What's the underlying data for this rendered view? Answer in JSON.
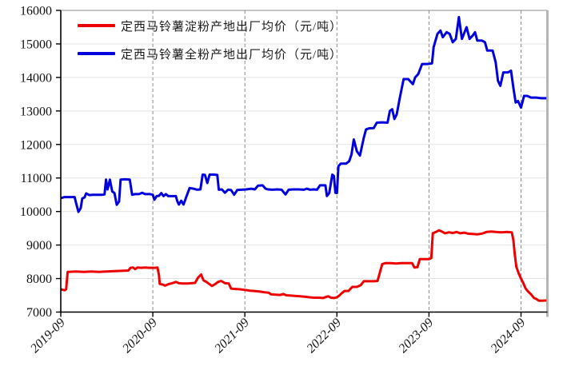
{
  "chart_data": {
    "type": "line",
    "title": "",
    "xlabel": "",
    "ylabel": "",
    "unit": "元/吨",
    "x_axis": {
      "tick_labels": [
        "2019-09",
        "2020-09",
        "2021-09",
        "2022-09",
        "2023-09",
        "2024-09"
      ],
      "tick_month_offsets": [
        0,
        12,
        24,
        36,
        48,
        60
      ],
      "months_span": 63.3,
      "label_style": "italic, rotated -45deg"
    },
    "y_axis": {
      "min": 7000,
      "max": 16000,
      "step": 1000,
      "tick_labels": [
        "7000",
        "8000",
        "9000",
        "10000",
        "11000",
        "12000",
        "13000",
        "14000",
        "15000",
        "16000"
      ]
    },
    "grid": {
      "horizontal": true,
      "vertical_dashed_at_year_ticks": true
    },
    "legend_position": "top-left",
    "colors": {
      "starch": "#ee0000",
      "whole_powder": "#0000dd",
      "grid": "#e3e3e3",
      "dashed_grid": "#8a8a8a",
      "axis": "#000000",
      "frame": "#b4b4b4"
    },
    "series": [
      {
        "name": "定西马铃薯淀粉产地出厂均价（元/吨）",
        "color": "#ee0000",
        "key": "starch",
        "points": [
          [
            0,
            7680
          ],
          [
            0.5,
            7650
          ],
          [
            0.7,
            7680
          ],
          [
            0.9,
            8200
          ],
          [
            2,
            8210
          ],
          [
            3,
            8200
          ],
          [
            4,
            8210
          ],
          [
            5,
            8200
          ],
          [
            6,
            8210
          ],
          [
            7,
            8220
          ],
          [
            8,
            8230
          ],
          [
            8.8,
            8240
          ],
          [
            9.1,
            8320
          ],
          [
            9.4,
            8330
          ],
          [
            9.7,
            8280
          ],
          [
            10,
            8330
          ],
          [
            10.5,
            8320
          ],
          [
            11,
            8330
          ],
          [
            11.5,
            8320
          ],
          [
            12.3,
            8320
          ],
          [
            12.6,
            8330
          ],
          [
            12.8,
            8100
          ],
          [
            12.9,
            7840
          ],
          [
            13.3,
            7820
          ],
          [
            13.6,
            7790
          ],
          [
            14,
            7830
          ],
          [
            14.5,
            7860
          ],
          [
            15,
            7900
          ],
          [
            15.4,
            7860
          ],
          [
            15.9,
            7850
          ],
          [
            16.5,
            7850
          ],
          [
            17,
            7860
          ],
          [
            17.5,
            7870
          ],
          [
            17.9,
            8030
          ],
          [
            18.3,
            8120
          ],
          [
            18.6,
            7950
          ],
          [
            19,
            7900
          ],
          [
            19.4,
            7830
          ],
          [
            19.7,
            7780
          ],
          [
            20.1,
            7830
          ],
          [
            20.5,
            7900
          ],
          [
            20.9,
            7930
          ],
          [
            21.4,
            7860
          ],
          [
            21.9,
            7850
          ],
          [
            22.2,
            7700
          ],
          [
            22.8,
            7690
          ],
          [
            23.4,
            7680
          ],
          [
            24,
            7660
          ],
          [
            24.6,
            7640
          ],
          [
            25.2,
            7630
          ],
          [
            26,
            7610
          ],
          [
            26.6,
            7590
          ],
          [
            27.1,
            7580
          ],
          [
            27.4,
            7530
          ],
          [
            28,
            7520
          ],
          [
            28.6,
            7510
          ],
          [
            29,
            7540
          ],
          [
            29.4,
            7500
          ],
          [
            30,
            7490
          ],
          [
            30.6,
            7480
          ],
          [
            31.2,
            7470
          ],
          [
            31.8,
            7460
          ],
          [
            32.4,
            7440
          ],
          [
            33,
            7430
          ],
          [
            33.6,
            7430
          ],
          [
            34.2,
            7420
          ],
          [
            34.7,
            7460
          ],
          [
            34.9,
            7470
          ],
          [
            35.2,
            7430
          ],
          [
            35.6,
            7420
          ],
          [
            36,
            7440
          ],
          [
            36.3,
            7490
          ],
          [
            36.6,
            7560
          ],
          [
            37,
            7630
          ],
          [
            37.5,
            7630
          ],
          [
            38,
            7750
          ],
          [
            38.6,
            7750
          ],
          [
            39.1,
            7800
          ],
          [
            39.5,
            7920
          ],
          [
            40.2,
            7920
          ],
          [
            40.9,
            7920
          ],
          [
            41.3,
            7930
          ],
          [
            41.9,
            8430
          ],
          [
            42.3,
            8460
          ],
          [
            43,
            8460
          ],
          [
            43.7,
            8450
          ],
          [
            44.4,
            8460
          ],
          [
            45.1,
            8460
          ],
          [
            45.8,
            8460
          ],
          [
            46.1,
            8330
          ],
          [
            46.5,
            8340
          ],
          [
            46.8,
            8580
          ],
          [
            47.4,
            8580
          ],
          [
            48,
            8580
          ],
          [
            48.3,
            8610
          ],
          [
            48.5,
            9350
          ],
          [
            48.9,
            9390
          ],
          [
            49.3,
            9440
          ],
          [
            49.7,
            9400
          ],
          [
            50.1,
            9350
          ],
          [
            50.6,
            9380
          ],
          [
            51.1,
            9360
          ],
          [
            51.6,
            9390
          ],
          [
            52.1,
            9350
          ],
          [
            52.6,
            9370
          ],
          [
            53.1,
            9340
          ],
          [
            53.7,
            9330
          ],
          [
            54.3,
            9320
          ],
          [
            54.9,
            9340
          ],
          [
            55.5,
            9390
          ],
          [
            56.1,
            9400
          ],
          [
            56.7,
            9390
          ],
          [
            57.4,
            9380
          ],
          [
            58.2,
            9390
          ],
          [
            58.8,
            9380
          ],
          [
            59,
            9150
          ],
          [
            59.2,
            8700
          ],
          [
            59.4,
            8350
          ],
          [
            59.7,
            8150
          ],
          [
            60,
            8000
          ],
          [
            60.3,
            7860
          ],
          [
            60.6,
            7700
          ],
          [
            60.9,
            7620
          ],
          [
            61.3,
            7530
          ],
          [
            61.7,
            7420
          ],
          [
            62,
            7390
          ],
          [
            62.3,
            7340
          ],
          [
            62.8,
            7340
          ],
          [
            63.3,
            7345
          ]
        ]
      },
      {
        "name": "定西马铃薯全粉产地出厂均价（元/吨）",
        "color": "#0000dd",
        "key": "whole_powder",
        "points": [
          [
            0,
            10400
          ],
          [
            0.5,
            10430
          ],
          [
            1,
            10430
          ],
          [
            1.8,
            10430
          ],
          [
            2,
            10250
          ],
          [
            2.3,
            9990
          ],
          [
            2.6,
            10100
          ],
          [
            2.8,
            10390
          ],
          [
            3.1,
            10420
          ],
          [
            3.3,
            10540
          ],
          [
            3.7,
            10490
          ],
          [
            4.2,
            10500
          ],
          [
            4.8,
            10500
          ],
          [
            5.4,
            10500
          ],
          [
            5.7,
            10510
          ],
          [
            5.9,
            10950
          ],
          [
            6.1,
            10660
          ],
          [
            6.4,
            10950
          ],
          [
            6.7,
            10600
          ],
          [
            7,
            10550
          ],
          [
            7.3,
            10200
          ],
          [
            7.6,
            10300
          ],
          [
            7.8,
            10950
          ],
          [
            8.4,
            10960
          ],
          [
            9,
            10950
          ],
          [
            9.3,
            10500
          ],
          [
            9.7,
            10520
          ],
          [
            10.2,
            10520
          ],
          [
            10.6,
            10560
          ],
          [
            11,
            10520
          ],
          [
            11.6,
            10520
          ],
          [
            12,
            10500
          ],
          [
            12.2,
            10350
          ],
          [
            12.5,
            10460
          ],
          [
            12.8,
            10470
          ],
          [
            13.1,
            10550
          ],
          [
            13.4,
            10460
          ],
          [
            13.7,
            10520
          ],
          [
            14,
            10460
          ],
          [
            14.6,
            10460
          ],
          [
            15,
            10460
          ],
          [
            15.2,
            10300
          ],
          [
            15.4,
            10210
          ],
          [
            15.7,
            10320
          ],
          [
            16,
            10210
          ],
          [
            16.4,
            10460
          ],
          [
            16.8,
            10700
          ],
          [
            17.3,
            10680
          ],
          [
            17.8,
            10650
          ],
          [
            18.2,
            10660
          ],
          [
            18.5,
            11100
          ],
          [
            18.8,
            11090
          ],
          [
            19.1,
            10850
          ],
          [
            19.4,
            11100
          ],
          [
            19.9,
            11100
          ],
          [
            20.4,
            11090
          ],
          [
            20.6,
            10650
          ],
          [
            21,
            10660
          ],
          [
            21.4,
            10560
          ],
          [
            21.8,
            10650
          ],
          [
            22.2,
            10640
          ],
          [
            22.6,
            10500
          ],
          [
            23,
            10640
          ],
          [
            23.6,
            10650
          ],
          [
            24.2,
            10660
          ],
          [
            24.8,
            10680
          ],
          [
            25.3,
            10660
          ],
          [
            25.7,
            10770
          ],
          [
            26.3,
            10780
          ],
          [
            26.7,
            10680
          ],
          [
            27,
            10660
          ],
          [
            27.6,
            10650
          ],
          [
            28.2,
            10660
          ],
          [
            28.8,
            10650
          ],
          [
            29.3,
            10510
          ],
          [
            29.7,
            10650
          ],
          [
            30.3,
            10660
          ],
          [
            31,
            10660
          ],
          [
            31.7,
            10650
          ],
          [
            32.1,
            10680
          ],
          [
            32.5,
            10650
          ],
          [
            33,
            10660
          ],
          [
            33.4,
            10650
          ],
          [
            33.8,
            10780
          ],
          [
            34.5,
            10780
          ],
          [
            34.7,
            10460
          ],
          [
            35,
            10550
          ],
          [
            35.4,
            11100
          ],
          [
            35.6,
            11060
          ],
          [
            35.8,
            10560
          ],
          [
            36,
            10550
          ],
          [
            36.2,
            11350
          ],
          [
            36.5,
            11430
          ],
          [
            37.2,
            11430
          ],
          [
            37.6,
            11500
          ],
          [
            37.9,
            11700
          ],
          [
            38.2,
            12150
          ],
          [
            38.6,
            11800
          ],
          [
            39,
            11670
          ],
          [
            39.5,
            12200
          ],
          [
            39.8,
            12450
          ],
          [
            40.2,
            12480
          ],
          [
            40.8,
            12490
          ],
          [
            41.2,
            12650
          ],
          [
            41.9,
            12660
          ],
          [
            42.6,
            12650
          ],
          [
            42.9,
            13000
          ],
          [
            43.2,
            13050
          ],
          [
            43.5,
            12760
          ],
          [
            43.8,
            12900
          ],
          [
            44.2,
            13400
          ],
          [
            44.7,
            13950
          ],
          [
            45.3,
            13950
          ],
          [
            45.9,
            13800
          ],
          [
            46.2,
            14000
          ],
          [
            46.6,
            14100
          ],
          [
            47.1,
            14400
          ],
          [
            47.8,
            14400
          ],
          [
            48.4,
            14420
          ],
          [
            48.6,
            14900
          ],
          [
            49.1,
            15300
          ],
          [
            49.5,
            15400
          ],
          [
            49.8,
            15200
          ],
          [
            50.3,
            15350
          ],
          [
            50.7,
            15300
          ],
          [
            51.1,
            15050
          ],
          [
            51.5,
            15150
          ],
          [
            51.9,
            15800
          ],
          [
            52.3,
            15150
          ],
          [
            52.9,
            15500
          ],
          [
            53.3,
            15150
          ],
          [
            53.7,
            15250
          ],
          [
            54,
            15350
          ],
          [
            54.3,
            15100
          ],
          [
            54.9,
            15100
          ],
          [
            55.3,
            15050
          ],
          [
            55.6,
            14800
          ],
          [
            56.3,
            14800
          ],
          [
            56.7,
            14450
          ],
          [
            57,
            13900
          ],
          [
            57.3,
            13750
          ],
          [
            57.7,
            14150
          ],
          [
            58.3,
            14150
          ],
          [
            58.7,
            14200
          ],
          [
            59,
            13700
          ],
          [
            59.3,
            13250
          ],
          [
            59.6,
            13300
          ],
          [
            60,
            13100
          ],
          [
            60.4,
            13450
          ],
          [
            60.8,
            13450
          ],
          [
            61.3,
            13400
          ],
          [
            62,
            13400
          ],
          [
            62.6,
            13380
          ],
          [
            63.3,
            13380
          ]
        ]
      }
    ]
  },
  "legend": {
    "items": [
      {
        "label": "定西马铃薯淀粉产地出厂均价（元/吨）"
      },
      {
        "label": "定西马铃薯全粉产地出厂均价（元/吨）"
      }
    ]
  }
}
